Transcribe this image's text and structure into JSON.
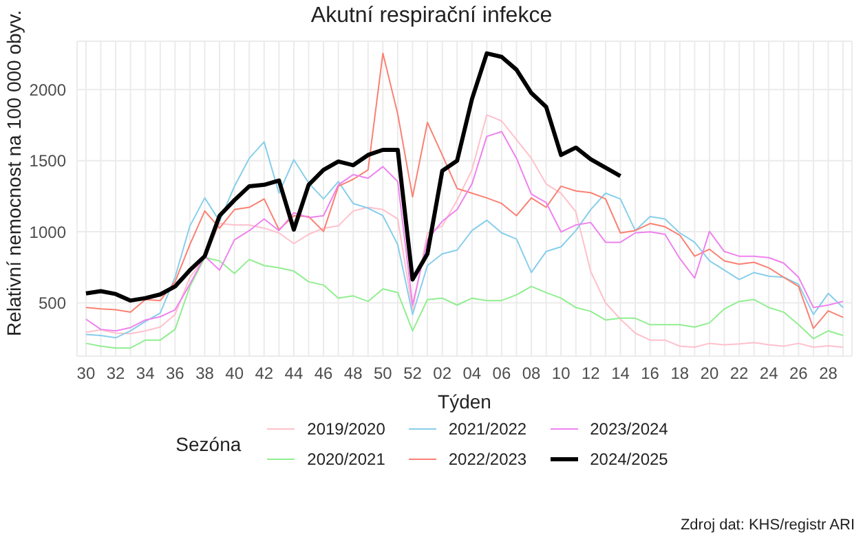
{
  "chart_data": {
    "type": "line",
    "title": "Akutní respirační infekce",
    "xlabel": "Týden",
    "ylabel": "Relativní nemocnost na 100 000 obyv.",
    "legend_title": "Sezóna",
    "legend": "bottom",
    "grid": true,
    "marker": "none",
    "line_style": "solid",
    "categories": [
      "30",
      null,
      "32",
      null,
      "34",
      null,
      "36",
      null,
      "38",
      null,
      "40",
      null,
      "42",
      null,
      "44",
      null,
      "46",
      null,
      "48",
      null,
      "50",
      null,
      "52",
      null,
      "02",
      null,
      "04",
      null,
      "06",
      null,
      "08",
      null,
      "10",
      null,
      "12",
      null,
      "14",
      null,
      "16",
      null,
      "18",
      null,
      "20",
      null,
      "22",
      null,
      "24",
      null,
      "26",
      null,
      "28",
      null
    ],
    "ylim": [
      125,
      2340
    ],
    "yticks": [
      500,
      1000,
      1500,
      2000
    ],
    "series": [
      {
        "name": "2019/2020",
        "color": "#ffc0cb",
        "values": [
          293,
          310,
          287,
          283,
          303,
          329,
          418,
          680,
          818,
          1058,
          1048,
          1048,
          1025,
          992,
          917,
          982,
          1025,
          1041,
          1146,
          1172,
          1156,
          1090,
          451,
          992,
          1041,
          1222,
          1435,
          1822,
          1779,
          1648,
          1517,
          1336,
          1271,
          1140,
          720,
          500,
          385,
          287,
          238,
          238,
          195,
          188,
          215,
          205,
          211,
          221,
          205,
          195,
          215,
          188,
          198,
          188
        ]
      },
      {
        "name": "2020/2021",
        "color": "#90ee90",
        "values": [
          215,
          195,
          182,
          182,
          238,
          238,
          313,
          615,
          818,
          795,
          707,
          805,
          762,
          746,
          723,
          648,
          625,
          533,
          549,
          510,
          598,
          572,
          303,
          523,
          533,
          484,
          533,
          516,
          516,
          556,
          615,
          572,
          533,
          467,
          440,
          379,
          392,
          392,
          346,
          346,
          346,
          329,
          359,
          457,
          510,
          523,
          467,
          434,
          346,
          248,
          303,
          270
        ]
      },
      {
        "name": "2021/2022",
        "color": "#87ceeb",
        "values": [
          277,
          270,
          254,
          303,
          369,
          428,
          680,
          1041,
          1238,
          1074,
          1320,
          1517,
          1632,
          1271,
          1507,
          1343,
          1231,
          1353,
          1199,
          1166,
          1113,
          910,
          418,
          762,
          844,
          871,
          1008,
          1081,
          992,
          949,
          713,
          861,
          894,
          1008,
          1156,
          1271,
          1231,
          1008,
          1107,
          1090,
          992,
          926,
          795,
          730,
          664,
          713,
          687,
          680,
          631,
          418,
          566,
          467
        ]
      },
      {
        "name": "2022/2023",
        "color": "#fa8072",
        "values": [
          467,
          457,
          451,
          434,
          523,
          516,
          648,
          910,
          1146,
          1025,
          1156,
          1172,
          1231,
          1015,
          1113,
          1107,
          1002,
          1320,
          1369,
          1435,
          2255,
          1828,
          1245,
          1769,
          1540,
          1304,
          1271,
          1238,
          1199,
          1113,
          1238,
          1172,
          1320,
          1287,
          1275,
          1231,
          992,
          1008,
          1058,
          1035,
          976,
          828,
          877,
          795,
          772,
          785,
          746,
          680,
          615,
          320,
          444,
          398
        ]
      },
      {
        "name": "2023/2024",
        "color": "#ee82ee",
        "values": [
          385,
          313,
          303,
          326,
          379,
          402,
          451,
          631,
          828,
          730,
          943,
          1008,
          1090,
          1008,
          1133,
          1100,
          1113,
          1330,
          1402,
          1376,
          1458,
          1353,
          484,
          943,
          1074,
          1156,
          1336,
          1671,
          1704,
          1517,
          1264,
          1205,
          999,
          1048,
          1065,
          926,
          926,
          992,
          999,
          982,
          812,
          674,
          1002,
          861,
          828,
          828,
          818,
          779,
          680,
          467,
          484,
          510
        ]
      },
      {
        "name": "2024/2025",
        "color": "#000000",
        "values": [
          566,
          582,
          562,
          516,
          533,
          559,
          615,
          730,
          828,
          1113,
          1222,
          1320,
          1330,
          1360,
          1015,
          1330,
          1435,
          1494,
          1468,
          1540,
          1576,
          1576,
          664,
          844,
          1428,
          1500,
          1933,
          2255,
          2230,
          2140,
          1976,
          1878,
          1540,
          1592,
          1510,
          1451,
          1392,
          null,
          null,
          null,
          null,
          null,
          null,
          null,
          null,
          null,
          null,
          null,
          null,
          null,
          null,
          null
        ]
      }
    ],
    "annotations": [
      "Zdroj dat: KHS/registr ARI"
    ]
  }
}
